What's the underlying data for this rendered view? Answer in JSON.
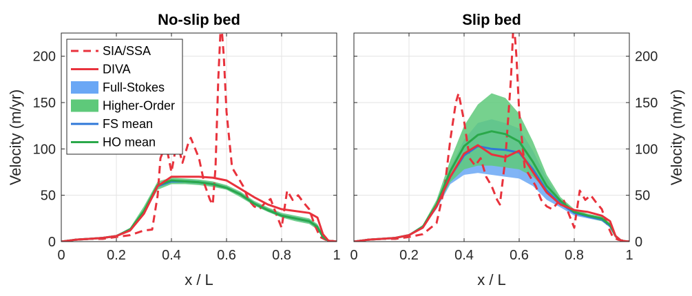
{
  "chart_data": [
    {
      "type": "line",
      "title": "No-slip bed",
      "xlabel": "x / L",
      "ylabel": "Velocity (m/yr)",
      "xlim": [
        0,
        1
      ],
      "ylim": [
        0,
        225
      ],
      "xticks": [
        "0",
        "0.2",
        "0.4",
        "0.6",
        "0.8",
        "1"
      ],
      "yticks": [
        "0",
        "50",
        "100",
        "150",
        "200"
      ],
      "grid": true,
      "legend_placement": "top-left",
      "x": [
        0,
        0.05,
        0.1,
        0.15,
        0.2,
        0.25,
        0.3,
        0.35,
        0.4,
        0.45,
        0.5,
        0.55,
        0.6,
        0.65,
        0.7,
        0.75,
        0.8,
        0.85,
        0.9,
        0.93,
        0.95,
        0.97,
        1.0
      ],
      "series": [
        {
          "name": "SIA/SSA",
          "style": "dashed",
          "color": "#e8323c",
          "points": [
            [
              0,
              0
            ],
            [
              0.05,
              2
            ],
            [
              0.1,
              3
            ],
            [
              0.15,
              3
            ],
            [
              0.2,
              5
            ],
            [
              0.25,
              7
            ],
            [
              0.3,
              12
            ],
            [
              0.33,
              13
            ],
            [
              0.35,
              50
            ],
            [
              0.36,
              90
            ],
            [
              0.38,
              105
            ],
            [
              0.4,
              75
            ],
            [
              0.42,
              108
            ],
            [
              0.44,
              85
            ],
            [
              0.46,
              105
            ],
            [
              0.47,
              112
            ],
            [
              0.5,
              90
            ],
            [
              0.52,
              62
            ],
            [
              0.54,
              45
            ],
            [
              0.55,
              40
            ],
            [
              0.56,
              80
            ],
            [
              0.57,
              175
            ],
            [
              0.58,
              240
            ],
            [
              0.59,
              200
            ],
            [
              0.6,
              140
            ],
            [
              0.62,
              80
            ],
            [
              0.64,
              70
            ],
            [
              0.66,
              60
            ],
            [
              0.68,
              45
            ],
            [
              0.7,
              38
            ],
            [
              0.72,
              35
            ],
            [
              0.74,
              42
            ],
            [
              0.76,
              46
            ],
            [
              0.78,
              30
            ],
            [
              0.8,
              15
            ],
            [
              0.82,
              55
            ],
            [
              0.84,
              45
            ],
            [
              0.86,
              50
            ],
            [
              0.88,
              42
            ],
            [
              0.9,
              35
            ],
            [
              0.92,
              18
            ],
            [
              0.94,
              5
            ],
            [
              0.96,
              2
            ],
            [
              1.0,
              0
            ]
          ]
        },
        {
          "name": "DIVA",
          "style": "solid",
          "color": "#e8323c",
          "values": [
            0,
            2,
            3,
            4,
            6,
            12,
            30,
            60,
            70,
            70,
            70,
            69,
            66,
            57,
            48,
            40,
            35,
            33,
            31,
            26,
            8,
            1,
            0
          ]
        },
        {
          "name": "Full-Stokes",
          "type": "band",
          "color": "#6aa7f5",
          "lower": [
            0,
            2,
            3,
            4,
            6,
            12,
            30,
            58,
            63,
            63,
            62,
            60,
            57,
            50,
            40,
            33,
            27,
            23,
            20,
            14,
            4,
            1,
            0
          ],
          "upper": [
            0,
            2,
            3,
            4,
            7,
            14,
            33,
            62,
            67,
            67,
            66,
            64,
            60,
            53,
            43,
            36,
            30,
            27,
            24,
            18,
            6,
            1,
            0
          ]
        },
        {
          "name": "Higher-Order",
          "type": "band",
          "color": "#5ec97a",
          "lower": [
            0,
            2,
            3,
            4,
            6,
            12,
            30,
            56,
            62,
            62,
            61,
            59,
            56,
            48,
            39,
            32,
            26,
            22,
            19,
            13,
            3,
            1,
            0
          ],
          "upper": [
            0,
            2,
            3,
            4,
            7,
            15,
            38,
            65,
            69,
            68,
            67,
            65,
            61,
            54,
            44,
            37,
            31,
            28,
            25,
            19,
            7,
            1,
            0
          ]
        },
        {
          "name": "FS mean",
          "style": "solid",
          "color": "#2f78d8",
          "values": [
            0,
            2,
            3,
            4,
            6,
            13,
            31,
            60,
            65,
            65,
            64,
            62,
            58,
            51,
            41,
            34,
            28,
            25,
            22,
            16,
            5,
            1,
            0
          ]
        },
        {
          "name": "HO mean",
          "style": "solid",
          "color": "#2aa84a",
          "values": [
            0,
            2,
            3,
            4,
            6,
            13,
            33,
            61,
            66,
            65,
            64,
            62,
            58,
            51,
            41,
            34,
            28,
            25,
            22,
            16,
            5,
            1,
            0
          ]
        }
      ]
    },
    {
      "type": "line",
      "title": "Slip bed",
      "xlabel": "x / L",
      "ylabel": "Velocity (m/yr)",
      "xlim": [
        0,
        1
      ],
      "ylim": [
        0,
        225
      ],
      "xticks": [
        "0",
        "0.2",
        "0.4",
        "0.6",
        "0.8",
        "1"
      ],
      "yticks": [
        "0",
        "50",
        "100",
        "150",
        "200"
      ],
      "grid": true,
      "x": [
        0,
        0.05,
        0.1,
        0.15,
        0.2,
        0.25,
        0.3,
        0.35,
        0.4,
        0.45,
        0.5,
        0.55,
        0.6,
        0.65,
        0.7,
        0.75,
        0.8,
        0.85,
        0.9,
        0.93,
        0.95,
        0.97,
        1.0
      ],
      "series": [
        {
          "name": "SIA/SSA",
          "style": "dashed",
          "color": "#e8323c",
          "points": [
            [
              0,
              0
            ],
            [
              0.05,
              2
            ],
            [
              0.1,
              3
            ],
            [
              0.15,
              3
            ],
            [
              0.2,
              5
            ],
            [
              0.25,
              8
            ],
            [
              0.3,
              20
            ],
            [
              0.33,
              60
            ],
            [
              0.35,
              110
            ],
            [
              0.37,
              150
            ],
            [
              0.38,
              160
            ],
            [
              0.4,
              130
            ],
            [
              0.42,
              90
            ],
            [
              0.44,
              82
            ],
            [
              0.46,
              90
            ],
            [
              0.48,
              70
            ],
            [
              0.5,
              60
            ],
            [
              0.52,
              45
            ],
            [
              0.53,
              40
            ],
            [
              0.55,
              90
            ],
            [
              0.57,
              175
            ],
            [
              0.58,
              240
            ],
            [
              0.59,
              200
            ],
            [
              0.6,
              140
            ],
            [
              0.62,
              80
            ],
            [
              0.64,
              70
            ],
            [
              0.66,
              60
            ],
            [
              0.68,
              45
            ],
            [
              0.7,
              38
            ],
            [
              0.72,
              35
            ],
            [
              0.74,
              42
            ],
            [
              0.76,
              46
            ],
            [
              0.78,
              30
            ],
            [
              0.8,
              15
            ],
            [
              0.82,
              55
            ],
            [
              0.84,
              45
            ],
            [
              0.86,
              50
            ],
            [
              0.88,
              42
            ],
            [
              0.9,
              35
            ],
            [
              0.92,
              18
            ],
            [
              0.94,
              5
            ],
            [
              0.96,
              2
            ],
            [
              1.0,
              0
            ]
          ]
        },
        {
          "name": "DIVA",
          "style": "solid",
          "color": "#e8323c",
          "values": [
            0,
            2,
            3,
            4,
            7,
            15,
            38,
            70,
            95,
            104,
            94,
            91,
            98,
            75,
            53,
            40,
            34,
            32,
            28,
            22,
            6,
            1,
            0
          ]
        },
        {
          "name": "Full-Stokes",
          "type": "band",
          "color": "#6aa7f5",
          "lower": [
            0,
            2,
            3,
            4,
            7,
            15,
            35,
            62,
            72,
            74,
            72,
            70,
            68,
            60,
            45,
            37,
            28,
            25,
            22,
            15,
            4,
            1,
            0
          ],
          "upper": [
            0,
            2,
            3,
            4,
            8,
            17,
            42,
            80,
            110,
            128,
            132,
            128,
            122,
            98,
            68,
            45,
            33,
            29,
            25,
            19,
            7,
            1,
            0
          ]
        },
        {
          "name": "Higher-Order",
          "type": "band",
          "color": "#5ec97a",
          "lower": [
            0,
            2,
            3,
            4,
            7,
            15,
            36,
            64,
            78,
            82,
            82,
            80,
            78,
            70,
            55,
            40,
            30,
            26,
            22,
            16,
            4,
            1,
            0
          ],
          "upper": [
            0,
            2,
            3,
            4,
            8,
            18,
            45,
            88,
            125,
            148,
            160,
            155,
            138,
            108,
            72,
            48,
            35,
            30,
            27,
            20,
            8,
            1,
            0
          ]
        },
        {
          "name": "FS mean",
          "style": "solid",
          "color": "#2f78d8",
          "values": [
            0,
            2,
            3,
            4,
            7,
            16,
            38,
            70,
            93,
            103,
            100,
            99,
            96,
            78,
            55,
            41,
            31,
            27,
            24,
            17,
            6,
            1,
            0
          ]
        },
        {
          "name": "HO mean",
          "style": "solid",
          "color": "#2aa84a",
          "values": [
            0,
            2,
            3,
            4,
            7,
            16,
            40,
            76,
            103,
            115,
            119,
            116,
            108,
            86,
            60,
            44,
            32,
            28,
            25,
            18,
            6,
            1,
            0
          ]
        }
      ]
    }
  ],
  "legend": {
    "entries": [
      {
        "label": "SIA/SSA",
        "kind": "dashed",
        "color": "#e8323c"
      },
      {
        "label": "DIVA",
        "kind": "line",
        "color": "#e8323c"
      },
      {
        "label": "Full-Stokes",
        "kind": "patch",
        "color": "#6aa7f5"
      },
      {
        "label": "Higher-Order",
        "kind": "patch",
        "color": "#5ec97a"
      },
      {
        "label": "FS mean",
        "kind": "line",
        "color": "#2f78d8"
      },
      {
        "label": "HO mean",
        "kind": "line",
        "color": "#2aa84a"
      }
    ]
  }
}
